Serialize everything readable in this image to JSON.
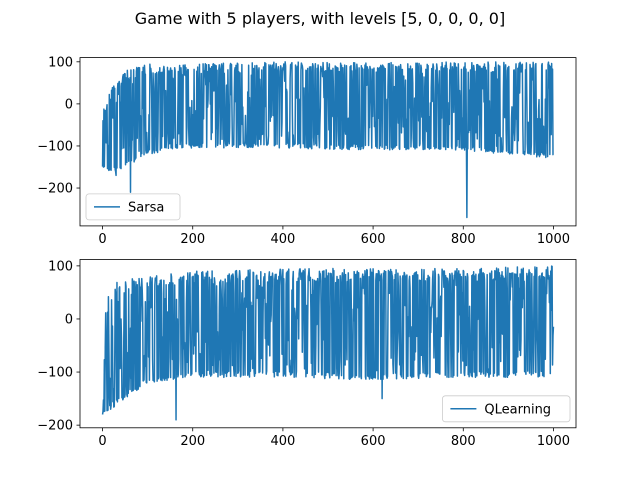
{
  "figure": {
    "title": "Game with 5 players, with levels [5, 0, 0, 0, 0]",
    "series_color": "#1f77b4"
  },
  "chart_data": [
    {
      "type": "line",
      "legend": "Sarsa",
      "legend_position": "lower-left",
      "grid": false,
      "xlim": [
        -50,
        1050
      ],
      "ylim": [
        -290,
        110
      ],
      "xticks": [
        0,
        200,
        400,
        600,
        800,
        1000
      ],
      "yticks": [
        100,
        0,
        -100,
        -200
      ],
      "seed": 7,
      "envelope": [
        {
          "x": 0,
          "lo": -160,
          "hi": -20
        },
        {
          "x": 20,
          "lo": -165,
          "hi": 40
        },
        {
          "x": 50,
          "lo": -150,
          "hi": 80
        },
        {
          "x": 100,
          "lo": -120,
          "hi": 95
        },
        {
          "x": 150,
          "lo": -110,
          "hi": 90
        },
        {
          "x": 200,
          "lo": -105,
          "hi": 95
        },
        {
          "x": 400,
          "lo": -105,
          "hi": 100
        },
        {
          "x": 600,
          "lo": -110,
          "hi": 100
        },
        {
          "x": 800,
          "lo": -110,
          "hi": 100
        },
        {
          "x": 1000,
          "lo": -130,
          "hi": 100
        }
      ],
      "spikes": [
        {
          "x": 62,
          "y": -210
        },
        {
          "x": 808,
          "y": -270
        },
        {
          "x": 30,
          "y": -170
        }
      ]
    },
    {
      "type": "line",
      "legend": "QLearning",
      "legend_position": "lower-right",
      "grid": false,
      "xlim": [
        -50,
        1050
      ],
      "ylim": [
        -205,
        112
      ],
      "xticks": [
        0,
        200,
        400,
        600,
        800,
        1000
      ],
      "yticks": [
        100,
        0,
        -100,
        -200
      ],
      "seed": 13,
      "envelope": [
        {
          "x": 0,
          "lo": -180,
          "hi": -10
        },
        {
          "x": 20,
          "lo": -170,
          "hi": 70
        },
        {
          "x": 100,
          "lo": -120,
          "hi": 80
        },
        {
          "x": 200,
          "lo": -110,
          "hi": 90
        },
        {
          "x": 400,
          "lo": -110,
          "hi": 95
        },
        {
          "x": 600,
          "lo": -115,
          "hi": 95
        },
        {
          "x": 800,
          "lo": -110,
          "hi": 95
        },
        {
          "x": 1000,
          "lo": -110,
          "hi": 100
        }
      ],
      "spikes": [
        {
          "x": 0,
          "y": -180
        },
        {
          "x": 18,
          "y": -170
        },
        {
          "x": 163,
          "y": -190
        },
        {
          "x": 620,
          "y": -150
        }
      ]
    }
  ]
}
